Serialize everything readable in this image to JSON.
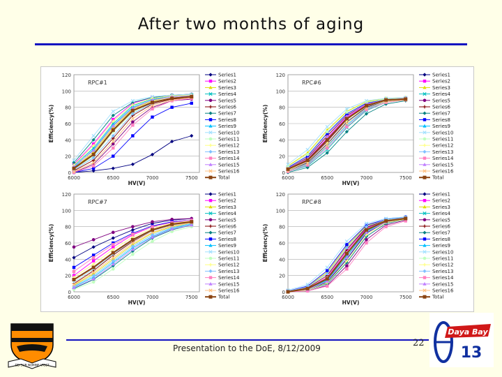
{
  "slide": {
    "title": "After two months of aging",
    "footer": "Presentation to the DoE, 8/12/2009",
    "page_number": "22",
    "logo_text": "Daya Bay",
    "logo_number": "13",
    "crest_motto": "DEI SUB NUMINE VIGET"
  },
  "series_names": [
    "Series1",
    "Series2",
    "Series3",
    "Series4",
    "Series5",
    "Series6",
    "Series7",
    "Series8",
    "Series9",
    "Series10",
    "Series11",
    "Series12",
    "Series13",
    "Series14",
    "Series15",
    "Series16",
    "Total"
  ],
  "series_colors": [
    "#000080",
    "#ff00ff",
    "#e0e000",
    "#00c0c0",
    "#800080",
    "#800000",
    "#008080",
    "#0000ff",
    "#00c0ff",
    "#a0e0ff",
    "#c0ffc0",
    "#ffff80",
    "#80c0ff",
    "#ff80c0",
    "#c080ff",
    "#ffc080",
    "#8b4513"
  ],
  "chart_data": [
    {
      "type": "line",
      "title": "RPC#1",
      "xlabel": "HV(V)",
      "ylabel": "Efficiency(%)",
      "x": [
        6000,
        6250,
        6500,
        6750,
        7000,
        7250,
        7500
      ],
      "xticks": [
        "6000",
        "6500",
        "7000",
        "7500"
      ],
      "xlim": [
        6000,
        7600
      ],
      "ylim": [
        0,
        120
      ],
      "yticks": [
        0,
        20,
        40,
        60,
        80,
        100,
        120
      ],
      "series_values": [
        [
          0,
          2,
          5,
          10,
          22,
          38,
          45
        ],
        [
          10,
          35,
          65,
          85,
          92,
          95,
          96
        ],
        [
          5,
          25,
          55,
          78,
          88,
          93,
          95
        ],
        [
          8,
          30,
          60,
          82,
          90,
          94,
          95
        ],
        [
          0,
          10,
          35,
          62,
          80,
          88,
          90
        ],
        [
          2,
          15,
          42,
          70,
          84,
          90,
          92
        ],
        [
          12,
          40,
          70,
          86,
          92,
          95,
          96
        ],
        [
          0,
          5,
          20,
          45,
          68,
          80,
          85
        ],
        [
          6,
          28,
          58,
          80,
          89,
          93,
          94
        ],
        [
          15,
          45,
          75,
          88,
          93,
          95,
          96
        ],
        [
          4,
          20,
          50,
          74,
          86,
          91,
          93
        ],
        [
          9,
          33,
          63,
          83,
          91,
          94,
          95
        ],
        [
          3,
          18,
          45,
          72,
          85,
          91,
          93
        ],
        [
          0,
          8,
          30,
          58,
          78,
          88,
          91
        ],
        [
          7,
          27,
          57,
          79,
          89,
          93,
          94
        ],
        [
          1,
          12,
          38,
          66,
          82,
          89,
          92
        ],
        [
          5,
          22,
          52,
          76,
          86,
          91,
          93
        ]
      ]
    },
    {
      "type": "line",
      "title": "RPC#6",
      "xlabel": "HV(V)",
      "ylabel": "Efficiency(%)",
      "x": [
        6000,
        6250,
        6500,
        6750,
        7000,
        7250,
        7500
      ],
      "xticks": [
        "6000",
        "6500",
        "7000",
        "7500"
      ],
      "xlim": [
        6000,
        7600
      ],
      "ylim": [
        0,
        120
      ],
      "yticks": [
        0,
        20,
        40,
        60,
        80,
        100,
        120
      ],
      "series_values": [
        [
          2,
          12,
          35,
          62,
          80,
          88,
          90
        ],
        [
          4,
          16,
          42,
          68,
          83,
          89,
          91
        ],
        [
          8,
          24,
          52,
          75,
          87,
          91,
          92
        ],
        [
          1,
          8,
          28,
          55,
          76,
          86,
          89
        ],
        [
          3,
          14,
          38,
          65,
          82,
          88,
          90
        ],
        [
          5,
          18,
          45,
          70,
          84,
          89,
          91
        ],
        [
          0,
          6,
          24,
          50,
          72,
          84,
          88
        ],
        [
          6,
          20,
          48,
          72,
          85,
          90,
          91
        ],
        [
          2,
          10,
          32,
          58,
          78,
          87,
          89
        ],
        [
          10,
          28,
          56,
          78,
          88,
          91,
          92
        ],
        [
          7,
          22,
          50,
          74,
          86,
          90,
          91
        ],
        [
          3,
          13,
          36,
          63,
          81,
          88,
          90
        ],
        [
          4,
          15,
          40,
          66,
          82,
          89,
          90
        ],
        [
          1,
          9,
          30,
          56,
          77,
          86,
          89
        ],
        [
          5,
          17,
          44,
          69,
          84,
          89,
          91
        ],
        [
          2,
          11,
          33,
          60,
          79,
          87,
          89
        ],
        [
          4,
          15,
          40,
          66,
          82,
          89,
          90
        ]
      ]
    },
    {
      "type": "line",
      "title": "RPC#7",
      "xlabel": "HV(V)",
      "ylabel": "Efficiency(%)",
      "x": [
        6000,
        6250,
        6500,
        6750,
        7000,
        7250,
        7500
      ],
      "xticks": [
        "6000",
        "6500",
        "7000",
        "7500"
      ],
      "xlim": [
        6000,
        7600
      ],
      "ylim": [
        0,
        120
      ],
      "yticks": [
        0,
        20,
        40,
        60,
        80,
        100,
        120
      ],
      "series_values": [
        [
          42,
          55,
          66,
          76,
          84,
          88,
          90
        ],
        [
          20,
          38,
          55,
          70,
          80,
          86,
          88
        ],
        [
          8,
          22,
          40,
          58,
          72,
          80,
          84
        ],
        [
          15,
          30,
          48,
          64,
          76,
          83,
          86
        ],
        [
          55,
          64,
          73,
          80,
          86,
          89,
          90
        ],
        [
          10,
          26,
          45,
          62,
          75,
          82,
          86
        ],
        [
          4,
          15,
          32,
          50,
          66,
          76,
          82
        ],
        [
          30,
          45,
          60,
          72,
          81,
          86,
          88
        ],
        [
          6,
          18,
          36,
          54,
          68,
          78,
          83
        ],
        [
          12,
          28,
          46,
          63,
          75,
          82,
          85
        ],
        [
          3,
          12,
          28,
          46,
          62,
          74,
          80
        ],
        [
          18,
          34,
          52,
          67,
          78,
          84,
          87
        ],
        [
          7,
          20,
          38,
          56,
          70,
          79,
          84
        ],
        [
          25,
          42,
          58,
          71,
          80,
          85,
          88
        ],
        [
          5,
          16,
          34,
          52,
          67,
          77,
          82
        ],
        [
          9,
          24,
          42,
          60,
          73,
          81,
          85
        ],
        [
          15,
          30,
          48,
          64,
          76,
          83,
          86
        ]
      ]
    },
    {
      "type": "line",
      "title": "RPC#8",
      "xlabel": "HV(V)",
      "ylabel": "Efficiency(%)",
      "x": [
        6000,
        6250,
        6500,
        6750,
        7000,
        7250,
        7500
      ],
      "xticks": [
        "6000",
        "6500",
        "7000",
        "7500"
      ],
      "xlim": [
        6000,
        7600
      ],
      "ylim": [
        0,
        120
      ],
      "yticks": [
        0,
        20,
        40,
        60,
        80,
        100,
        120
      ],
      "series_values": [
        [
          0,
          2,
          12,
          40,
          72,
          86,
          90
        ],
        [
          0,
          4,
          18,
          50,
          78,
          88,
          91
        ],
        [
          1,
          6,
          24,
          56,
          81,
          89,
          91
        ],
        [
          0,
          3,
          14,
          44,
          74,
          87,
          90
        ],
        [
          0,
          1,
          8,
          32,
          64,
          82,
          88
        ],
        [
          0,
          5,
          20,
          52,
          79,
          88,
          91
        ],
        [
          0,
          2,
          10,
          36,
          68,
          84,
          89
        ],
        [
          1,
          7,
          26,
          58,
          82,
          89,
          92
        ],
        [
          0,
          3,
          15,
          46,
          75,
          87,
          90
        ],
        [
          2,
          9,
          30,
          62,
          84,
          90,
          92
        ],
        [
          0,
          4,
          17,
          48,
          77,
          88,
          91
        ],
        [
          0,
          2,
          11,
          38,
          70,
          85,
          89
        ],
        [
          1,
          6,
          22,
          54,
          80,
          89,
          91
        ],
        [
          0,
          1,
          7,
          28,
          60,
          80,
          87
        ],
        [
          0,
          3,
          13,
          42,
          73,
          86,
          90
        ],
        [
          0,
          4,
          16,
          47,
          76,
          87,
          90
        ],
        [
          0,
          4,
          16,
          47,
          76,
          87,
          90
        ]
      ]
    }
  ]
}
